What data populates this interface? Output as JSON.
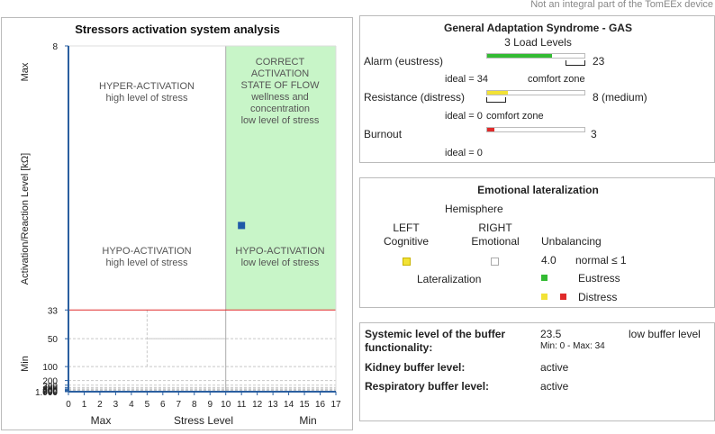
{
  "header": {
    "note": "Not an integral part of the TomEEx device"
  },
  "colors": {
    "green": "#33bb33",
    "yellow": "#f2e236",
    "red": "#e02a2a",
    "flow_zone": "#c8f5c8",
    "marker": "#1f5aa8",
    "axis": "#2a5fa0"
  },
  "chart_data": {
    "type": "scatter",
    "title": "Stressors activation system analysis",
    "xlabel": "Stress Level",
    "x_tick_labels": [
      "0",
      "1",
      "2",
      "3",
      "4",
      "5",
      "6",
      "7",
      "8",
      "9",
      "10",
      "11",
      "12",
      "13",
      "14",
      "15",
      "16",
      "17"
    ],
    "x_extremes": {
      "left": "Max",
      "right": "Min"
    },
    "xlim": [
      0,
      17
    ],
    "ylabel": "Activation/Reaction Level [kΩ]",
    "y_tick_labels": [
      "8",
      "33",
      "50",
      "100",
      "200",
      "300",
      "400",
      "500",
      "600",
      "700",
      "800",
      "900",
      "1.000"
    ],
    "y_extremes": {
      "top": "Max",
      "bottom": "Min"
    },
    "y_scale": "reciprocal",
    "threshold_y": 33,
    "points": [
      {
        "x": 11,
        "y": 16.5
      }
    ],
    "zones": [
      {
        "title": "HYPER-ACTIVATION",
        "desc": "high level of stress"
      },
      {
        "title": "CORRECT ACTIVATION STATE OF FLOW",
        "title_lines": [
          "CORRECT",
          "ACTIVATION",
          "STATE OF FLOW"
        ],
        "desc_lines": [
          "wellness and",
          "concentration",
          "low level of stress"
        ]
      },
      {
        "title": "HYPO-ACTIVATION",
        "desc": "high level of stress"
      },
      {
        "title": "HYPO-ACTIVATION",
        "desc": "low level of stress"
      }
    ]
  },
  "gas": {
    "title": "General Adaptation Syndrome - GAS",
    "subtitle": "3 Load Levels",
    "alarm": {
      "label": "Alarm (eustress)",
      "value": "23",
      "fill": 0.67,
      "ideal": "ideal = 34",
      "zone": "comfort zone"
    },
    "resistance": {
      "label": "Resistance (distress)",
      "value": "8 (medium)",
      "fill": 0.21,
      "ideal": "ideal = 0",
      "zone": "comfort zone"
    },
    "burnout": {
      "label": "Burnout",
      "value": "3",
      "fill": 0.07,
      "ideal": "ideal = 0"
    }
  },
  "lateral": {
    "title": "Emotional lateralization",
    "hemisphere": "Hemisphere",
    "left": "LEFT",
    "left_sub": "Cognitive",
    "right": "RIGHT",
    "right_sub": "Emotional",
    "lateralization": "Lateralization",
    "unbalancing": "Unbalancing",
    "unbalancing_value": "4.0",
    "normal": "normal ≤ 1",
    "eustress": "Eustress",
    "distress": "Distress"
  },
  "buffer": {
    "systemic_label_1": "Systemic level of the buffer",
    "systemic_label_2": "functionality:",
    "systemic_value": "23.5",
    "systemic_range": "Min: 0 - Max: 34",
    "systemic_status": "low buffer level",
    "kidney_label": "Kidney buffer level:",
    "kidney_value": "active",
    "resp_label": "Respiratory buffer level:",
    "resp_value": "active"
  }
}
